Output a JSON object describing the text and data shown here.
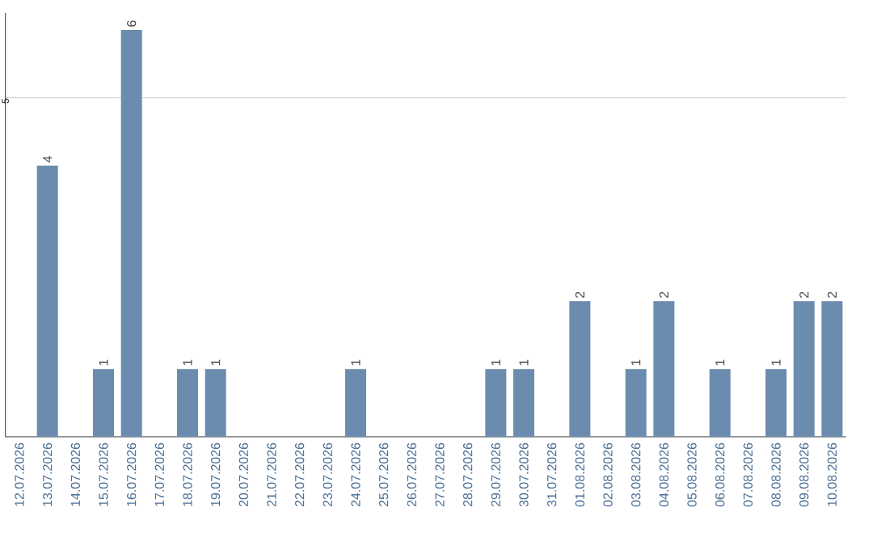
{
  "chart_data": {
    "type": "bar",
    "categories": [
      "12.07.2026",
      "13.07.2026",
      "14.07.2026",
      "15.07.2026",
      "16.07.2026",
      "17.07.2026",
      "18.07.2026",
      "19.07.2026",
      "20.07.2026",
      "21.07.2026",
      "22.07.2026",
      "23.07.2026",
      "24.07.2026",
      "25.07.2026",
      "26.07.2026",
      "27.07.2026",
      "28.07.2026",
      "29.07.2026",
      "30.07.2026",
      "31.07.2026",
      "01.08.2026",
      "02.08.2026",
      "03.08.2026",
      "04.08.2026",
      "05.08.2026",
      "06.08.2026",
      "07.08.2026",
      "08.08.2026",
      "09.08.2026",
      "10.08.2026"
    ],
    "values": [
      0,
      4,
      0,
      1,
      6,
      0,
      1,
      1,
      0,
      0,
      0,
      0,
      1,
      0,
      0,
      0,
      0,
      1,
      1,
      0,
      2,
      0,
      1,
      2,
      0,
      1,
      0,
      1,
      2,
      2
    ],
    "value_labels": [
      null,
      "4",
      null,
      "1",
      "6",
      null,
      "1",
      "1",
      null,
      null,
      null,
      null,
      "1",
      null,
      null,
      null,
      null,
      "1",
      "1",
      null,
      "2",
      null,
      "1",
      "2",
      null,
      "1",
      null,
      "1",
      "2",
      "2"
    ],
    "color": "#6b8cae",
    "ylim": [
      0,
      6.25
    ],
    "yticks": [
      5
    ],
    "grid": "y"
  }
}
